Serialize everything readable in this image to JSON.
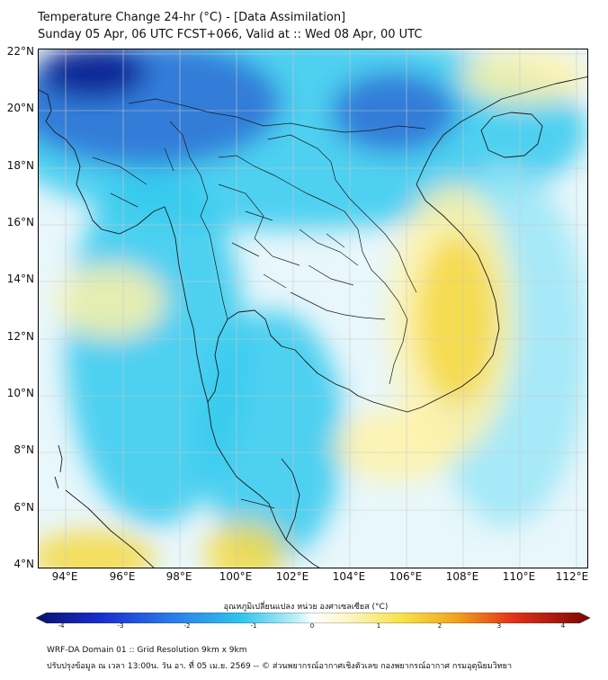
{
  "title": {
    "line1": "Temperature Change 24-hr (°C) - [Data Assimilation]",
    "line2": "Sunday 05 Apr, 06 UTC FCST+066, Valid at :: Wed 08 Apr, 00 UTC"
  },
  "map": {
    "lat_labels": [
      "22°N",
      "20°N",
      "18°N",
      "16°N",
      "14°N",
      "12°N",
      "10°N",
      "8°N",
      "6°N",
      "4°N"
    ],
    "lon_labels": [
      "94°E",
      "96°E",
      "98°E",
      "100°E",
      "102°E",
      "104°E",
      "106°E",
      "108°E",
      "110°E",
      "112°E"
    ],
    "colors": {
      "cold_strong": "#0a1a8c",
      "cold": "#2f6fd6",
      "cool": "#33c9ee",
      "cool_light": "#9be6f7",
      "neutral": "#e8f7fb",
      "warm_light": "#fff2a8",
      "warm": "#f6d941",
      "line": "#1a1a1a",
      "grid": "#c9c9c9"
    }
  },
  "colorbar": {
    "label": "อุณหภูมิเปลี่ยนแปลง หน่วย องศาเซลเซียส (°C)",
    "ticks": [
      "-4",
      "-3",
      "-2",
      "-1",
      "0",
      "1",
      "2",
      "3",
      "4"
    ]
  },
  "footer": {
    "line1": "WRF-DA Domain 01 :: Grid Resolution 9km x 9km",
    "line2": "ปรับปรุงข้อมูล ณ เวลา 13:00น. วัน อา. ที่ 05 เม.ย. 2569 -- © ส่วนพยากรณ์อากาศเชิงตัวเลข กองพยากรณ์อากาศ กรมอุตุนิยมวิทยา"
  }
}
